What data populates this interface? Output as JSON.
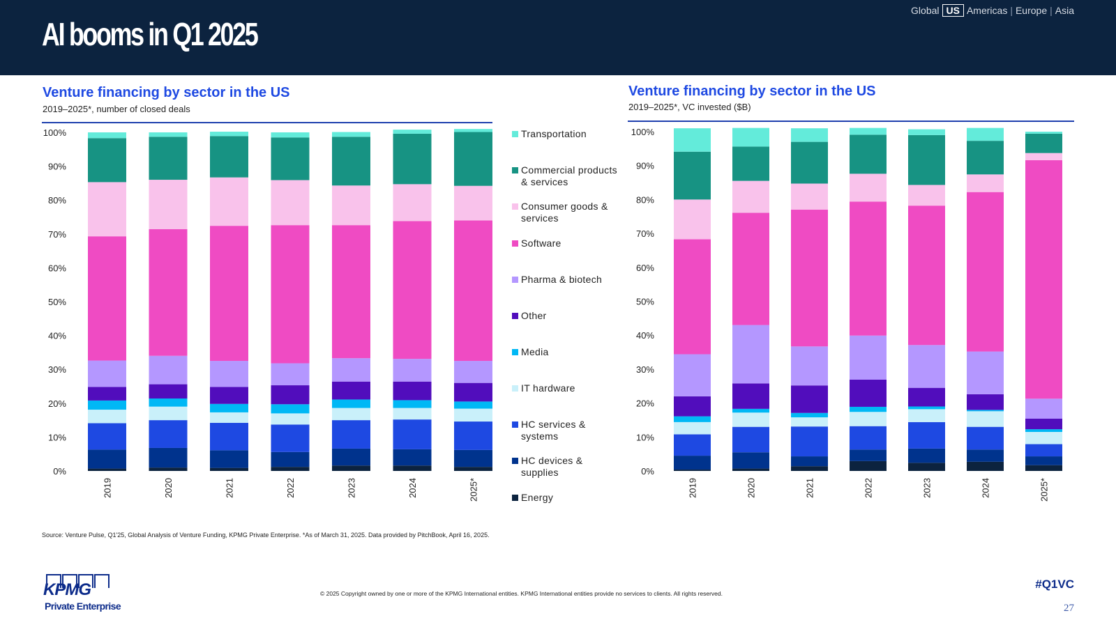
{
  "header": {
    "title": "AI booms in Q1 2025",
    "region_nav": {
      "items": [
        "Global",
        "US",
        "Americas",
        "|",
        "Europe",
        "|",
        "Asia"
      ],
      "selected": "US"
    }
  },
  "sectors": [
    {
      "name": "Energy",
      "color": "#0c233f"
    },
    {
      "name": "HC devices & supplies",
      "color": "#00338d"
    },
    {
      "name": "HC services & systems",
      "color": "#1e49e2"
    },
    {
      "name": "IT hardware",
      "color": "#c9f0fa"
    },
    {
      "name": "Media",
      "color": "#00b8f5"
    },
    {
      "name": "Other",
      "color": "#510dbc"
    },
    {
      "name": "Pharma & biotech",
      "color": "#b497ff"
    },
    {
      "name": "Software",
      "color": "#ef4bc3"
    },
    {
      "name": "Consumer goods & services",
      "color": "#f9c2eb"
    },
    {
      "name": "Commercial products & services",
      "color": "#179383"
    },
    {
      "name": "Transportation",
      "color": "#63ebda"
    }
  ],
  "legend": {
    "items": [
      {
        "label_lines": [
          "Transportation"
        ],
        "color": "#63ebda"
      },
      {
        "label_lines": [
          "Commercial products",
          "& services"
        ],
        "color": "#179383"
      },
      {
        "label_lines": [
          "Consumer goods &",
          "services"
        ],
        "color": "#f9c2eb"
      },
      {
        "label_lines": [
          "Software"
        ],
        "color": "#ef4bc3"
      },
      {
        "label_lines": [
          "Pharma & biotech"
        ],
        "color": "#b497ff"
      },
      {
        "label_lines": [
          "Other"
        ],
        "color": "#510dbc"
      },
      {
        "label_lines": [
          "Media"
        ],
        "color": "#00b8f5"
      },
      {
        "label_lines": [
          "IT hardware"
        ],
        "color": "#c9f0fa"
      },
      {
        "label_lines": [
          "HC services &",
          "systems"
        ],
        "color": "#1e49e2"
      },
      {
        "label_lines": [
          "HC devices &",
          "supplies"
        ],
        "color": "#00338d"
      },
      {
        "label_lines": [
          "Energy"
        ],
        "color": "#0c233f"
      }
    ]
  },
  "chart_data": [
    {
      "type": "bar",
      "stacked": true,
      "normalized": true,
      "title": "Venture financing by sector in the US",
      "subtitle": "2019–2025*, number of closed deals",
      "xlabel": "",
      "ylabel": "",
      "ylim": [
        0,
        100
      ],
      "yticks": [
        "0%",
        "10%",
        "20%",
        "30%",
        "40%",
        "50%",
        "60%",
        "70%",
        "80%",
        "90%",
        "100%"
      ],
      "categories": [
        "2019",
        "2020",
        "2021",
        "2022",
        "2023",
        "2024",
        "2025*"
      ],
      "legend_position": "right",
      "series": [
        {
          "name": "Energy",
          "values": [
            0.7,
            1.0,
            0.9,
            1.2,
            1.6,
            1.6,
            1.2
          ]
        },
        {
          "name": "HC devices & supplies",
          "values": [
            5.6,
            5.8,
            5.2,
            4.4,
            5.0,
            4.8,
            5.0
          ]
        },
        {
          "name": "HC services & systems",
          "values": [
            7.8,
            8.2,
            8.1,
            8.1,
            8.4,
            8.8,
            8.4
          ]
        },
        {
          "name": "IT hardware",
          "values": [
            4.0,
            4.0,
            3.1,
            3.3,
            3.6,
            3.4,
            3.8
          ]
        },
        {
          "name": "Media",
          "values": [
            2.7,
            2.4,
            2.5,
            2.7,
            2.5,
            2.3,
            2.1
          ]
        },
        {
          "name": "Other",
          "values": [
            4.0,
            4.2,
            5.0,
            5.6,
            5.3,
            5.5,
            5.5
          ]
        },
        {
          "name": "Pharma & biotech",
          "values": [
            7.8,
            8.4,
            7.7,
            6.5,
            6.9,
            6.7,
            6.5
          ]
        },
        {
          "name": "Software",
          "values": [
            36.7,
            37.4,
            39.9,
            40.8,
            39.3,
            40.7,
            41.5
          ]
        },
        {
          "name": "Consumer goods & services",
          "values": [
            16.0,
            14.6,
            14.3,
            13.3,
            11.7,
            10.9,
            10.2
          ]
        },
        {
          "name": "Commercial products & services",
          "values": [
            13.0,
            12.7,
            12.2,
            12.6,
            14.4,
            14.9,
            15.9
          ]
        },
        {
          "name": "Transportation",
          "values": [
            1.7,
            1.3,
            1.3,
            1.5,
            1.4,
            1.2,
            0.9
          ]
        }
      ]
    },
    {
      "type": "bar",
      "stacked": true,
      "normalized": true,
      "title": "Venture financing by sector in the US",
      "subtitle": "2019–2025*, VC invested ($B)",
      "xlabel": "",
      "ylabel": "",
      "ylim": [
        0,
        100
      ],
      "yticks": [
        "0%",
        "10%",
        "20%",
        "30%",
        "40%",
        "50%",
        "60%",
        "70%",
        "80%",
        "90%",
        "100%"
      ],
      "categories": [
        "2019",
        "2020",
        "2021",
        "2022",
        "2023",
        "2024",
        "2025*"
      ],
      "legend_position": "shared-left",
      "series": [
        {
          "name": "Energy",
          "values": [
            0.4,
            0.7,
            1.4,
            2.9,
            2.4,
            2.7,
            1.7
          ]
        },
        {
          "name": "HC devices & supplies",
          "values": [
            4.1,
            4.8,
            2.9,
            3.4,
            4.2,
            3.6,
            2.6
          ]
        },
        {
          "name": "HC services & systems",
          "values": [
            6.3,
            7.5,
            8.8,
            6.9,
            7.8,
            6.7,
            3.6
          ]
        },
        {
          "name": "IT hardware",
          "values": [
            3.6,
            4.2,
            2.7,
            4.2,
            3.8,
            4.6,
            3.6
          ]
        },
        {
          "name": "Media",
          "values": [
            1.7,
            1.1,
            1.3,
            1.5,
            0.8,
            0.4,
            0.8
          ]
        },
        {
          "name": "Other",
          "values": [
            5.9,
            7.5,
            8.1,
            8.0,
            5.5,
            4.6,
            3.1
          ]
        },
        {
          "name": "Pharma & biotech",
          "values": [
            12.4,
            17.2,
            11.5,
            13.0,
            12.6,
            12.6,
            5.9
          ]
        },
        {
          "name": "Software",
          "values": [
            33.9,
            33.1,
            40.3,
            39.5,
            41.1,
            47.0,
            70.3
          ]
        },
        {
          "name": "Consumer goods & services",
          "values": [
            11.7,
            9.4,
            7.7,
            8.2,
            6.1,
            5.2,
            2.1
          ]
        },
        {
          "name": "Commercial products & services",
          "values": [
            14.1,
            10.1,
            12.3,
            11.5,
            14.7,
            9.9,
            5.7
          ]
        },
        {
          "name": "Transportation",
          "values": [
            6.9,
            5.5,
            4.0,
            2.0,
            1.7,
            3.8,
            0.6
          ]
        }
      ]
    }
  ],
  "footer": {
    "source": "Source: Venture Pulse, Q1'25, Global Analysis of Venture Funding, KPMG Private Enterprise. *As of March 31, 2025. Data provided by PitchBook, April 16, 2025.",
    "copyright": "© 2025 Copyright owned by one or more of the KPMG International entities. KPMG International entities provide no services to clients. All rights reserved.",
    "hashtag": "#Q1VC",
    "page_number": "27",
    "logo_brand": "KPMG",
    "logo_sub": "Private Enterprise"
  }
}
